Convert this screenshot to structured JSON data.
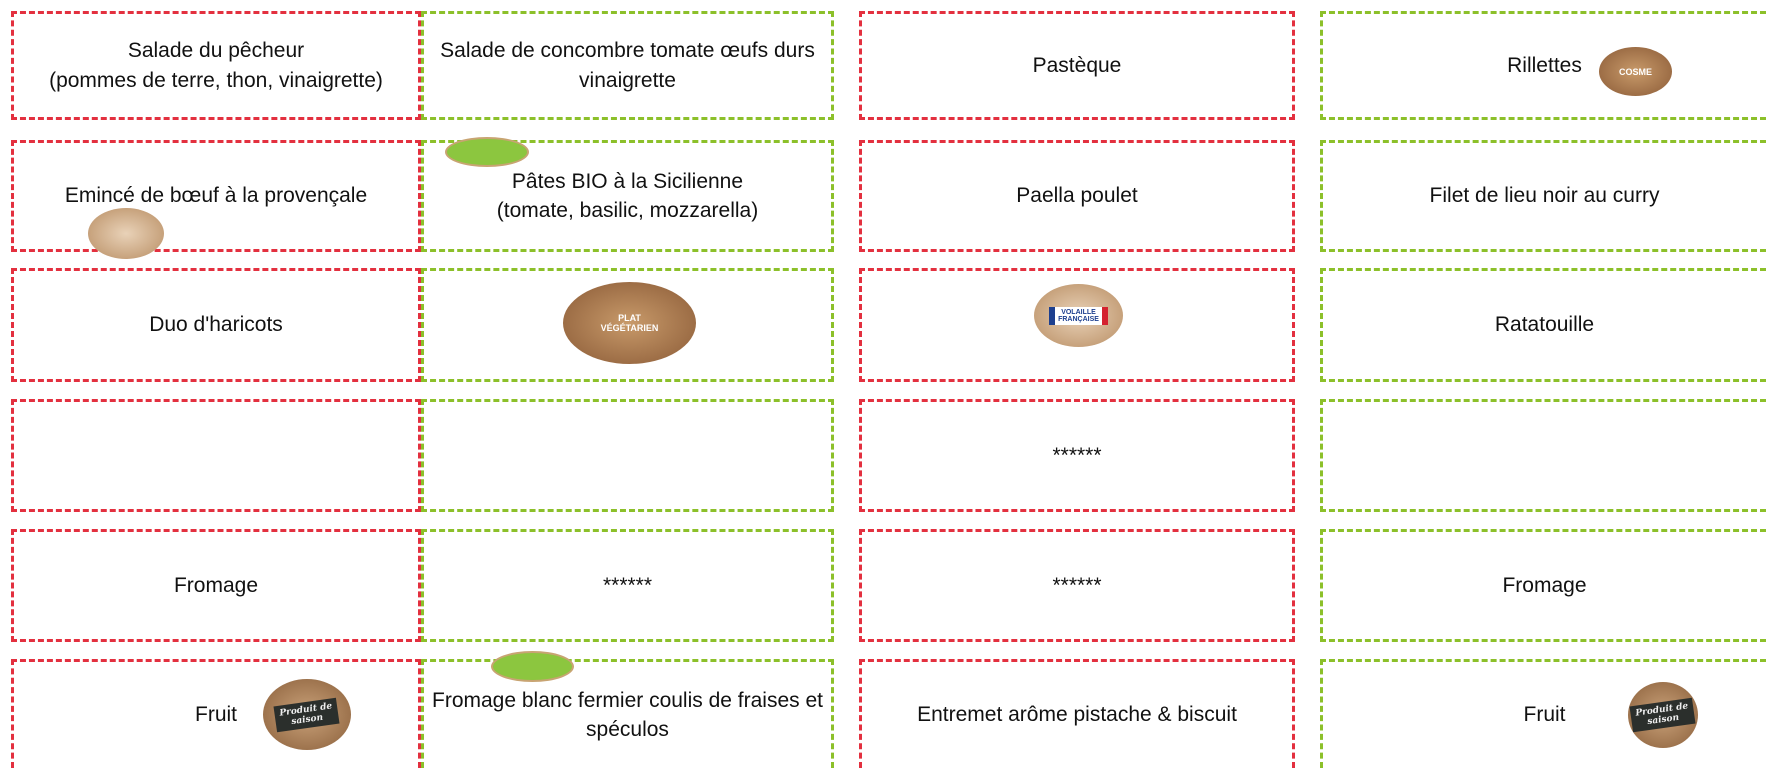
{
  "menu": {
    "columns": [
      {
        "cells": [
          "Salade du pêcheur\n(pommes de terre, thon, vinaigrette)",
          "Emincé de bœuf à la provençale",
          "Duo d'haricots",
          null,
          "Fromage",
          "Fruit"
        ]
      },
      {
        "cells": [
          "Salade de concombre tomate œufs durs\nvinaigrette",
          "Pâtes BIO à la Sicilienne\n(tomate, basilic, mozzarella)",
          null,
          null,
          "******",
          "Fromage blanc fermier  coulis de fraises et\nspéculos"
        ]
      },
      {
        "cells": [
          "Pastèque",
          "Paella poulet",
          null,
          "******",
          "******",
          "Entremet arôme pistache & biscuit"
        ]
      },
      {
        "cells": [
          "Rillettes",
          "Filet de lieu noir au curry",
          "Ratatouille",
          null,
          "Fromage",
          "Fruit"
        ]
      }
    ],
    "badges": {
      "cosme": "COSME",
      "vegetarien": "PLAT\nVÉGÉTARIEN",
      "volaille": "VOLAILLE\nFRANÇAISE",
      "saison": "Produit de\nsaison"
    }
  }
}
